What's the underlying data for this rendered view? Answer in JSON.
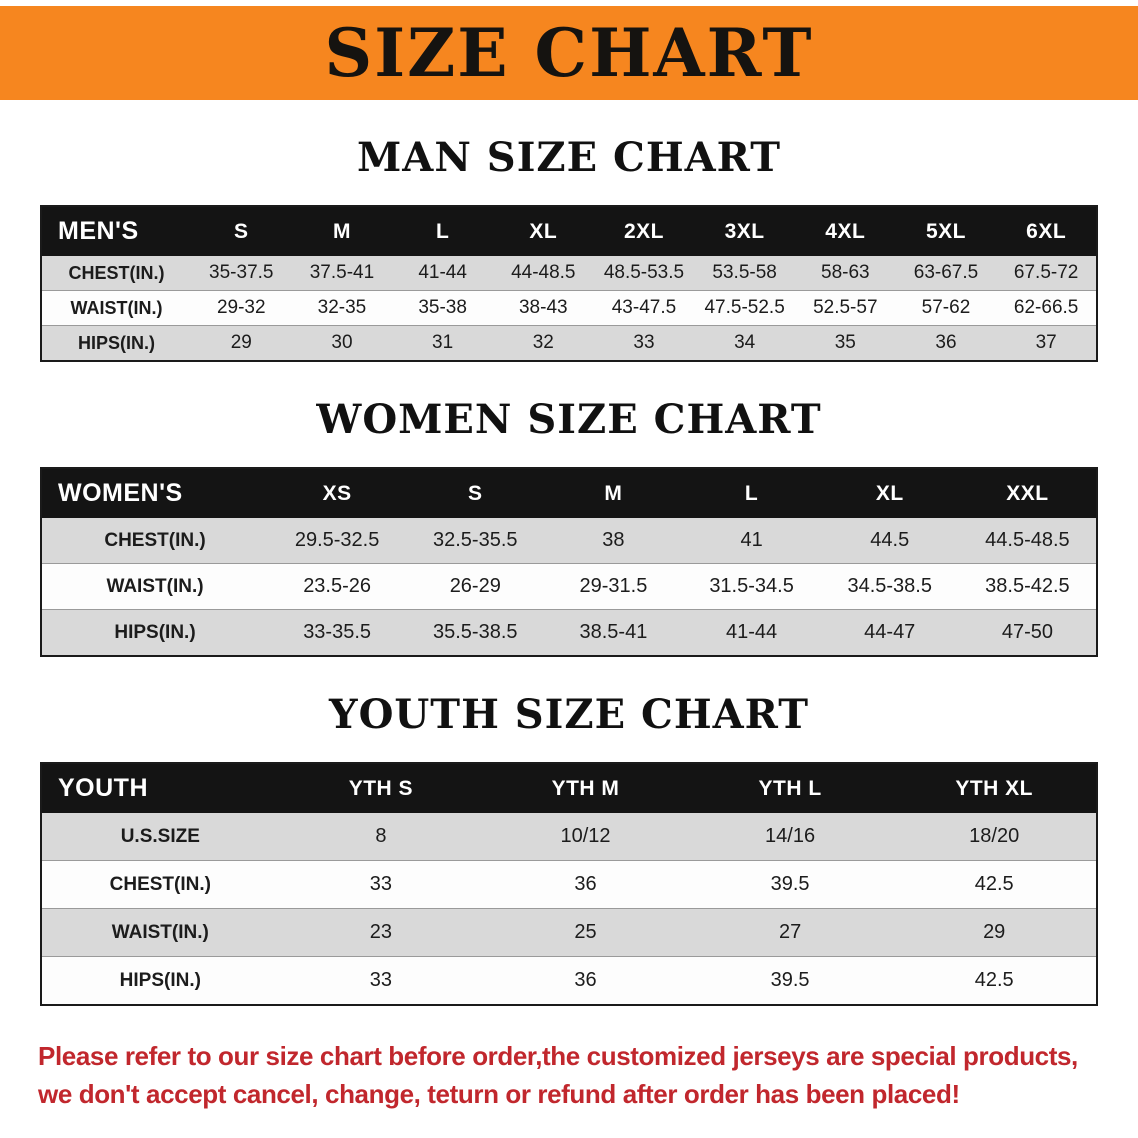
{
  "banner": {
    "title": "SIZE CHART"
  },
  "colors": {
    "banner_orange": "#f6861f",
    "disclaimer_red": "#c1272d",
    "table_header_black": "#141414",
    "row_gray": "#d9d9d9"
  },
  "sections": [
    {
      "heading": "MAN SIZE CHART",
      "table": {
        "header": [
          "MEN'S",
          "S",
          "M",
          "L",
          "XL",
          "2XL",
          "3XL",
          "4XL",
          "5XL",
          "6XL"
        ],
        "rows": [
          [
            "CHEST(IN.)",
            "35-37.5",
            "37.5-41",
            "41-44",
            "44-48.5",
            "48.5-53.5",
            "53.5-58",
            "58-63",
            "63-67.5",
            "67.5-72"
          ],
          [
            "WAIST(IN.)",
            "29-32",
            "32-35",
            "35-38",
            "38-43",
            "43-47.5",
            "47.5-52.5",
            "52.5-57",
            "57-62",
            "62-66.5"
          ],
          [
            "HIPS(IN.)",
            "29",
            "30",
            "31",
            "32",
            "33",
            "34",
            "35",
            "36",
            "37"
          ]
        ]
      }
    },
    {
      "heading": "WOMEN SIZE CHART",
      "table": {
        "header": [
          "WOMEN'S",
          "XS",
          "S",
          "M",
          "L",
          "XL",
          "XXL"
        ],
        "rows": [
          [
            "CHEST(IN.)",
            "29.5-32.5",
            "32.5-35.5",
            "38",
            "41",
            "44.5",
            "44.5-48.5"
          ],
          [
            "WAIST(IN.)",
            "23.5-26",
            "26-29",
            "29-31.5",
            "31.5-34.5",
            "34.5-38.5",
            "38.5-42.5"
          ],
          [
            "HIPS(IN.)",
            "33-35.5",
            "35.5-38.5",
            "38.5-41",
            "41-44",
            "44-47",
            "47-50"
          ]
        ]
      }
    },
    {
      "heading": "YOUTH SIZE CHART",
      "table": {
        "header": [
          "YOUTH",
          "YTH S",
          "YTH M",
          "YTH L",
          "YTH XL"
        ],
        "rows": [
          [
            "U.S.SIZE",
            "8",
            "10/12",
            "14/16",
            "18/20"
          ],
          [
            "CHEST(IN.)",
            "33",
            "36",
            "39.5",
            "42.5"
          ],
          [
            "WAIST(IN.)",
            "23",
            "25",
            "27",
            "29"
          ],
          [
            "HIPS(IN.)",
            "33",
            "36",
            "39.5",
            "42.5"
          ]
        ]
      }
    }
  ],
  "disclaimer": {
    "lines": [
      "Please refer to our size chart before order,the customized jerseys are special products,",
      "we don't accept cancel, change, teturn or refund after order has been placed!"
    ]
  }
}
